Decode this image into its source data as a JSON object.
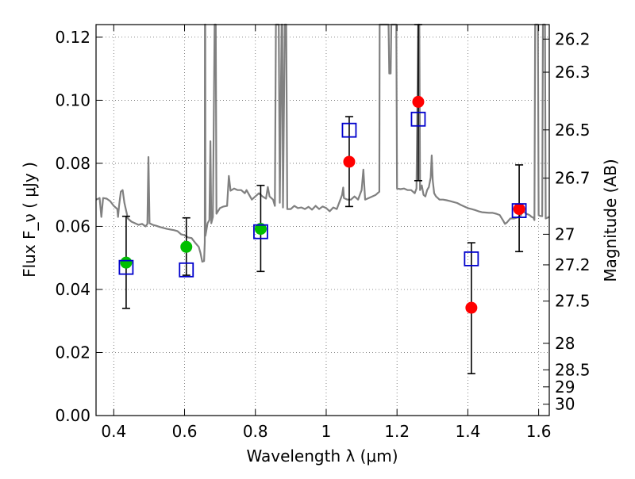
{
  "chart_data": {
    "type": "scatter",
    "title": "",
    "xlabel": "Wavelength  λ (μm)",
    "ylabel": "Flux  F_ν  ( μJy )",
    "y2label": "Magnitude (AB)",
    "xlim": [
      0.35,
      1.63
    ],
    "ylim": [
      0.0,
      0.124
    ],
    "grid": true,
    "x_ticks": [
      {
        "value": 0.4,
        "label": "0.4"
      },
      {
        "value": 0.6,
        "label": "0.6"
      },
      {
        "value": 0.8,
        "label": "0.8"
      },
      {
        "value": 1.0,
        "label": "1"
      },
      {
        "value": 1.2,
        "label": "1.2"
      },
      {
        "value": 1.4,
        "label": "1.4"
      },
      {
        "value": 1.6,
        "label": "1.6"
      }
    ],
    "y_ticks": [
      {
        "value": 0.0,
        "label": "0.00"
      },
      {
        "value": 0.02,
        "label": "0.02"
      },
      {
        "value": 0.04,
        "label": "0.04"
      },
      {
        "value": 0.06,
        "label": "0.06"
      },
      {
        "value": 0.08,
        "label": "0.08"
      },
      {
        "value": 0.1,
        "label": "0.10"
      },
      {
        "value": 0.12,
        "label": "0.12"
      }
    ],
    "y2_ticks": [
      {
        "flux": 0.1194,
        "label": "26.2"
      },
      {
        "flux": 0.1089,
        "label": "26.3"
      },
      {
        "flux": 0.0906,
        "label": "26.5"
      },
      {
        "flux": 0.0753,
        "label": "26.7"
      },
      {
        "flux": 0.0575,
        "label": "27"
      },
      {
        "flux": 0.0478,
        "label": "27.2"
      },
      {
        "flux": 0.0363,
        "label": "27.5"
      },
      {
        "flux": 0.0229,
        "label": "28"
      },
      {
        "flux": 0.0145,
        "label": "28.5"
      },
      {
        "flux": 0.0091,
        "label": "29"
      },
      {
        "flux": 0.0036,
        "label": "30"
      }
    ],
    "spectrum": {
      "color": "#808080",
      "points": [
        [
          0.35,
          0.0685
        ],
        [
          0.36,
          0.069
        ],
        [
          0.365,
          0.063
        ],
        [
          0.37,
          0.069
        ],
        [
          0.38,
          0.0688
        ],
        [
          0.39,
          0.068
        ],
        [
          0.4,
          0.0665
        ],
        [
          0.41,
          0.0655
        ],
        [
          0.412,
          0.063
        ],
        [
          0.415,
          0.0665
        ],
        [
          0.42,
          0.071
        ],
        [
          0.425,
          0.0715
        ],
        [
          0.43,
          0.0675
        ],
        [
          0.44,
          0.0625
        ],
        [
          0.45,
          0.0615
        ],
        [
          0.46,
          0.061
        ],
        [
          0.47,
          0.0605
        ],
        [
          0.48,
          0.0608
        ],
        [
          0.49,
          0.06
        ],
        [
          0.495,
          0.0608
        ],
        [
          0.498,
          0.082
        ],
        [
          0.501,
          0.061
        ],
        [
          0.51,
          0.0605
        ],
        [
          0.52,
          0.0602
        ],
        [
          0.53,
          0.0598
        ],
        [
          0.54,
          0.0595
        ],
        [
          0.55,
          0.0592
        ],
        [
          0.56,
          0.059
        ],
        [
          0.57,
          0.0588
        ],
        [
          0.58,
          0.0585
        ],
        [
          0.59,
          0.0575
        ],
        [
          0.6,
          0.0572
        ],
        [
          0.61,
          0.0565
        ],
        [
          0.62,
          0.0563
        ],
        [
          0.625,
          0.0555
        ],
        [
          0.63,
          0.0548
        ],
        [
          0.64,
          0.0535
        ],
        [
          0.645,
          0.0515
        ],
        [
          0.65,
          0.0488
        ],
        [
          0.655,
          0.049
        ],
        [
          0.657,
          0.055
        ],
        [
          0.6575,
          0.124
        ],
        [
          0.6585,
          0.124
        ],
        [
          0.659,
          0.057
        ],
        [
          0.665,
          0.061
        ],
        [
          0.67,
          0.062
        ],
        [
          0.673,
          0.087
        ],
        [
          0.6755,
          0.061
        ],
        [
          0.68,
          0.063
        ],
        [
          0.685,
          0.124
        ],
        [
          0.688,
          0.124
        ],
        [
          0.69,
          0.064
        ],
        [
          0.7,
          0.0658
        ],
        [
          0.71,
          0.0663
        ],
        [
          0.72,
          0.0665
        ],
        [
          0.725,
          0.076
        ],
        [
          0.73,
          0.0713
        ],
        [
          0.74,
          0.072
        ],
        [
          0.75,
          0.0715
        ],
        [
          0.76,
          0.0715
        ],
        [
          0.77,
          0.0705
        ],
        [
          0.775,
          0.0715
        ],
        [
          0.78,
          0.0705
        ],
        [
          0.79,
          0.0685
        ],
        [
          0.8,
          0.0695
        ],
        [
          0.81,
          0.0705
        ],
        [
          0.82,
          0.0695
        ],
        [
          0.83,
          0.0688
        ],
        [
          0.835,
          0.0725
        ],
        [
          0.84,
          0.0695
        ],
        [
          0.85,
          0.0685
        ],
        [
          0.855,
          0.0665
        ],
        [
          0.858,
          0.124
        ],
        [
          0.866,
          0.124
        ],
        [
          0.869,
          0.0675
        ],
        [
          0.874,
          0.124
        ],
        [
          0.876,
          0.124
        ],
        [
          0.878,
          0.066
        ],
        [
          0.883,
          0.124
        ],
        [
          0.887,
          0.124
        ],
        [
          0.89,
          0.0655
        ],
        [
          0.9,
          0.0655
        ],
        [
          0.91,
          0.0665
        ],
        [
          0.92,
          0.0658
        ],
        [
          0.93,
          0.066
        ],
        [
          0.94,
          0.0655
        ],
        [
          0.95,
          0.0662
        ],
        [
          0.96,
          0.0653
        ],
        [
          0.97,
          0.0665
        ],
        [
          0.98,
          0.0655
        ],
        [
          0.99,
          0.0663
        ],
        [
          1.0,
          0.0658
        ],
        [
          1.01,
          0.0648
        ],
        [
          1.02,
          0.066
        ],
        [
          1.03,
          0.0655
        ],
        [
          1.04,
          0.0685
        ],
        [
          1.045,
          0.07
        ],
        [
          1.048,
          0.0723
        ],
        [
          1.05,
          0.069
        ],
        [
          1.06,
          0.0685
        ],
        [
          1.07,
          0.0685
        ],
        [
          1.08,
          0.0695
        ],
        [
          1.09,
          0.0685
        ],
        [
          1.095,
          0.07
        ],
        [
          1.1,
          0.0715
        ],
        [
          1.105,
          0.078
        ],
        [
          1.11,
          0.0685
        ],
        [
          1.12,
          0.069
        ],
        [
          1.13,
          0.0695
        ],
        [
          1.14,
          0.07
        ],
        [
          1.15,
          0.071
        ],
        [
          1.151,
          0.124
        ],
        [
          1.176,
          0.124
        ],
        [
          1.178,
          0.1085
        ],
        [
          1.182,
          0.1085
        ],
        [
          1.184,
          0.124
        ],
        [
          1.198,
          0.124
        ],
        [
          1.2,
          0.072
        ],
        [
          1.21,
          0.0718
        ],
        [
          1.22,
          0.072
        ],
        [
          1.23,
          0.0715
        ],
        [
          1.24,
          0.0715
        ],
        [
          1.25,
          0.0705
        ],
        [
          1.255,
          0.072
        ],
        [
          1.26,
          0.124
        ],
        [
          1.263,
          0.124
        ],
        [
          1.265,
          0.0715
        ],
        [
          1.27,
          0.073
        ],
        [
          1.275,
          0.07
        ],
        [
          1.28,
          0.0695
        ],
        [
          1.285,
          0.0715
        ],
        [
          1.29,
          0.0725
        ],
        [
          1.295,
          0.0755
        ],
        [
          1.298,
          0.0825
        ],
        [
          1.301,
          0.0745
        ],
        [
          1.305,
          0.0705
        ],
        [
          1.31,
          0.0695
        ],
        [
          1.32,
          0.0685
        ],
        [
          1.33,
          0.0685
        ],
        [
          1.34,
          0.0683
        ],
        [
          1.35,
          0.068
        ],
        [
          1.36,
          0.0677
        ],
        [
          1.37,
          0.0674
        ],
        [
          1.38,
          0.0668
        ],
        [
          1.39,
          0.0663
        ],
        [
          1.4,
          0.0658
        ],
        [
          1.41,
          0.0655
        ],
        [
          1.42,
          0.0652
        ],
        [
          1.43,
          0.0648
        ],
        [
          1.44,
          0.0645
        ],
        [
          1.45,
          0.0644
        ],
        [
          1.46,
          0.0643
        ],
        [
          1.47,
          0.0643
        ],
        [
          1.48,
          0.064
        ],
        [
          1.49,
          0.0636
        ],
        [
          1.5,
          0.0618
        ],
        [
          1.505,
          0.0608
        ],
        [
          1.51,
          0.0612
        ],
        [
          1.52,
          0.0625
        ],
        [
          1.53,
          0.0625
        ],
        [
          1.54,
          0.0628
        ],
        [
          1.55,
          0.0635
        ],
        [
          1.555,
          0.065
        ],
        [
          1.56,
          0.0645
        ],
        [
          1.565,
          0.064
        ],
        [
          1.57,
          0.0638
        ],
        [
          1.575,
          0.0635
        ],
        [
          1.58,
          0.063
        ],
        [
          1.585,
          0.0628
        ],
        [
          1.588,
          0.062
        ],
        [
          1.59,
          0.124
        ],
        [
          1.598,
          0.124
        ],
        [
          1.6,
          0.0635
        ],
        [
          1.605,
          0.0633
        ],
        [
          1.61,
          0.0632
        ],
        [
          1.612,
          0.124
        ],
        [
          1.618,
          0.124
        ],
        [
          1.62,
          0.0625
        ],
        [
          1.63,
          0.063
        ]
      ]
    },
    "series": [
      {
        "marker": "circle",
        "color": "#00bf00",
        "points": [
          {
            "x": 0.435,
            "y": 0.0485
          },
          {
            "x": 0.605,
            "y": 0.0535
          },
          {
            "x": 0.815,
            "y": 0.0592
          }
        ]
      },
      {
        "marker": "circle",
        "color": "#ff0000",
        "points": [
          {
            "x": 1.065,
            "y": 0.0805
          },
          {
            "x": 1.26,
            "y": 0.0995
          },
          {
            "x": 1.41,
            "y": 0.0342
          },
          {
            "x": 1.545,
            "y": 0.0655
          }
        ]
      },
      {
        "marker": "open-square",
        "color": "#0000cc",
        "points": [
          {
            "x": 0.435,
            "y": 0.047,
            "yerr_low": 0.034,
            "yerr_high": 0.0632
          },
          {
            "x": 0.605,
            "y": 0.0462,
            "yerr_low": 0.0445,
            "yerr_high": 0.0627
          },
          {
            "x": 0.815,
            "y": 0.0583,
            "yerr_low": 0.0457,
            "yerr_high": 0.073
          },
          {
            "x": 1.065,
            "y": 0.0905,
            "yerr_low": 0.0663,
            "yerr_high": 0.0948
          },
          {
            "x": 1.26,
            "y": 0.094,
            "yerr_low": 0.0745,
            "yerr_high": 0.124
          },
          {
            "x": 1.41,
            "y": 0.0497,
            "yerr_low": 0.0133,
            "yerr_high": 0.0548
          },
          {
            "x": 1.545,
            "y": 0.065,
            "yerr_low": 0.052,
            "yerr_high": 0.0795
          }
        ]
      }
    ],
    "errorbar_color": "#000000"
  }
}
